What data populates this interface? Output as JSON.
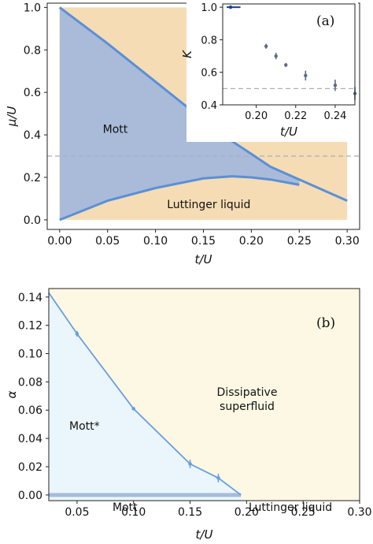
{
  "colors": {
    "luttinger_fill": "#f5dcb4",
    "mott_fill": "#a9bbd9",
    "boundary_line": "#5b8fd8",
    "dashed_line": "#aab0b8",
    "mott_star_fill": "#eaf6fc",
    "dissipative_fill": "#fdf8e4",
    "alpha_line": "#6a9ee0",
    "mott_bar": "#a6bcd8",
    "inset_points": "#5d6b82",
    "inset_legend": "#1f3f8f"
  },
  "chart_data": [
    {
      "type": "area",
      "panel_label": "(a)",
      "xlabel": "t/U",
      "ylabel": "μ/U",
      "xlim": [
        -0.013,
        0.313
      ],
      "ylim": [
        -0.045,
        1.02
      ],
      "xticks": [
        "0.00",
        "0.05",
        "0.10",
        "0.15",
        "0.20",
        "0.25",
        "0.30"
      ],
      "yticks": [
        "0.0",
        "0.2",
        "0.4",
        "0.6",
        "0.8",
        "1.0"
      ],
      "grid": false,
      "regions": [
        "Mott",
        "Luttinger liquid"
      ],
      "reference_line_y": 0.3,
      "upper_boundary": {
        "x": [
          0.0,
          0.05,
          0.1,
          0.15,
          0.18,
          0.2,
          0.22,
          0.25,
          0.3
        ],
        "y": [
          1.0,
          0.83,
          0.65,
          0.47,
          0.37,
          0.31,
          0.25,
          0.19,
          0.09
        ]
      },
      "lower_boundary": {
        "x": [
          0.0,
          0.05,
          0.1,
          0.15,
          0.18,
          0.2,
          0.22,
          0.25
        ],
        "y": [
          0.0,
          0.09,
          0.15,
          0.195,
          0.205,
          0.2,
          0.19,
          0.165
        ]
      },
      "luttinger_region_x": [
        0.0,
        0.3
      ],
      "inset": {
        "type": "scatter",
        "xlabel": "t/U",
        "ylabel": "K",
        "xlim": [
          0.183,
          0.25
        ],
        "ylim": [
          0.4,
          1.02
        ],
        "xticks": [
          "0.20",
          "0.22",
          "0.24"
        ],
        "yticks": [
          "0.4",
          "0.6",
          "0.8",
          "1.0"
        ],
        "reference_line_y": 0.5,
        "points": [
          {
            "x": 0.205,
            "y": 0.76,
            "err": 0.015
          },
          {
            "x": 0.21,
            "y": 0.7,
            "err": 0.02
          },
          {
            "x": 0.215,
            "y": 0.645,
            "err": 0.012
          },
          {
            "x": 0.225,
            "y": 0.58,
            "err": 0.03
          },
          {
            "x": 0.24,
            "y": 0.52,
            "err": 0.035
          },
          {
            "x": 0.25,
            "y": 0.47,
            "err": 0.04
          }
        ],
        "legend_line_y": 1.0,
        "legend_line_x": [
          0.185,
          0.192
        ]
      }
    },
    {
      "type": "line",
      "panel_label": "(b)",
      "xlabel": "t/U",
      "ylabel": "α",
      "xlim": [
        0.025,
        0.3
      ],
      "ylim": [
        -0.004,
        0.146
      ],
      "xticks": [
        "0.05",
        "0.10",
        "0.15",
        "0.20",
        "0.25",
        "0.30"
      ],
      "yticks": [
        "0.00",
        "0.02",
        "0.04",
        "0.06",
        "0.08",
        "0.10",
        "0.12",
        "0.14"
      ],
      "grid": false,
      "regions": [
        "Mott*",
        "Dissipative superfluid",
        "Mott",
        "Luttinger liquid"
      ],
      "series": [
        {
          "x": [
            0.025,
            0.05,
            0.1,
            0.15,
            0.175,
            0.195
          ],
          "y": [
            0.143,
            0.114,
            0.061,
            0.022,
            0.012,
            0.0
          ],
          "err": [
            0.0,
            0.002,
            0.001,
            0.003,
            0.003,
            0.0
          ]
        }
      ],
      "mott_bar_x": [
        0.025,
        0.195
      ]
    }
  ]
}
